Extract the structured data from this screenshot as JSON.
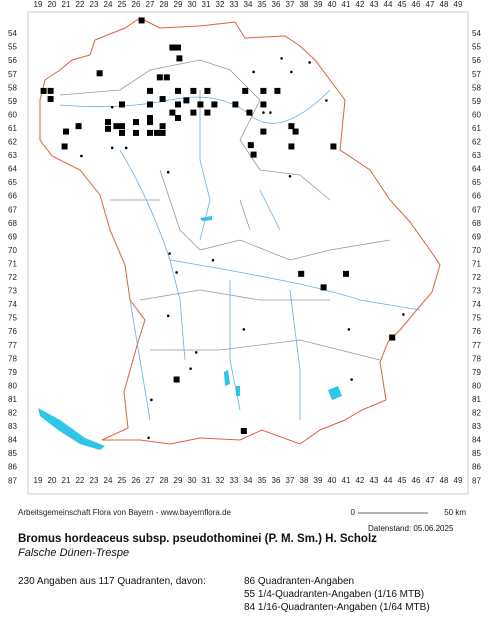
{
  "map": {
    "columns": [
      19,
      20,
      21,
      22,
      23,
      24,
      25,
      26,
      27,
      28,
      29,
      30,
      31,
      32,
      33,
      34,
      35,
      36,
      37,
      38,
      39,
      40,
      41,
      42,
      43,
      44,
      45,
      46,
      47,
      48,
      49
    ],
    "rows": [
      54,
      55,
      56,
      57,
      58,
      59,
      60,
      61,
      62,
      63,
      64,
      65,
      66,
      67,
      68,
      69,
      70,
      71,
      72,
      73,
      74,
      75,
      76,
      77,
      78,
      79,
      80,
      81,
      82,
      83,
      84,
      85,
      86,
      87
    ],
    "points": [
      {
        "col": 26.4,
        "row": 53.0,
        "kind": "square"
      },
      {
        "col": 28.6,
        "row": 55.0,
        "kind": "square"
      },
      {
        "col": 29.0,
        "row": 55.0,
        "kind": "square"
      },
      {
        "col": 29.1,
        "row": 55.8,
        "kind": "square"
      },
      {
        "col": 23.4,
        "row": 56.9,
        "kind": "square"
      },
      {
        "col": 27.7,
        "row": 57.2,
        "kind": "square"
      },
      {
        "col": 28.2,
        "row": 57.2,
        "kind": "square"
      },
      {
        "col": 19.4,
        "row": 58.2,
        "kind": "square"
      },
      {
        "col": 19.9,
        "row": 58.2,
        "kind": "square"
      },
      {
        "col": 27.0,
        "row": 58.2,
        "kind": "square"
      },
      {
        "col": 29.0,
        "row": 58.2,
        "kind": "square"
      },
      {
        "col": 30.1,
        "row": 58.2,
        "kind": "square"
      },
      {
        "col": 31.1,
        "row": 58.2,
        "kind": "square"
      },
      {
        "col": 33.8,
        "row": 58.2,
        "kind": "square"
      },
      {
        "col": 35.1,
        "row": 58.2,
        "kind": "square"
      },
      {
        "col": 36.1,
        "row": 58.2,
        "kind": "square"
      },
      {
        "col": 19.9,
        "row": 58.8,
        "kind": "square"
      },
      {
        "col": 25.0,
        "row": 59.2,
        "kind": "square"
      },
      {
        "col": 27.0,
        "row": 59.2,
        "kind": "square"
      },
      {
        "col": 27.9,
        "row": 58.8,
        "kind": "square"
      },
      {
        "col": 29.0,
        "row": 59.2,
        "kind": "square"
      },
      {
        "col": 29.6,
        "row": 58.9,
        "kind": "square"
      },
      {
        "col": 30.6,
        "row": 59.2,
        "kind": "square"
      },
      {
        "col": 31.6,
        "row": 59.2,
        "kind": "square"
      },
      {
        "col": 33.1,
        "row": 59.2,
        "kind": "square"
      },
      {
        "col": 35.1,
        "row": 59.2,
        "kind": "square"
      },
      {
        "col": 27.0,
        "row": 60.2,
        "kind": "square"
      },
      {
        "col": 28.6,
        "row": 59.8,
        "kind": "square"
      },
      {
        "col": 29.0,
        "row": 60.2,
        "kind": "square"
      },
      {
        "col": 30.1,
        "row": 59.8,
        "kind": "square"
      },
      {
        "col": 31.1,
        "row": 59.8,
        "kind": "square"
      },
      {
        "col": 34.1,
        "row": 59.8,
        "kind": "square"
      },
      {
        "col": 21.9,
        "row": 60.8,
        "kind": "square"
      },
      {
        "col": 24.0,
        "row": 60.5,
        "kind": "square"
      },
      {
        "col": 25.0,
        "row": 60.8,
        "kind": "square"
      },
      {
        "col": 26.0,
        "row": 60.5,
        "kind": "square"
      },
      {
        "col": 27.0,
        "row": 60.5,
        "kind": "square"
      },
      {
        "col": 27.9,
        "row": 60.8,
        "kind": "square"
      },
      {
        "col": 21.0,
        "row": 61.2,
        "kind": "square"
      },
      {
        "col": 24.0,
        "row": 61.0,
        "kind": "square"
      },
      {
        "col": 24.6,
        "row": 60.8,
        "kind": "square"
      },
      {
        "col": 25.0,
        "row": 61.3,
        "kind": "square"
      },
      {
        "col": 26.0,
        "row": 61.3,
        "kind": "square"
      },
      {
        "col": 27.0,
        "row": 61.3,
        "kind": "square"
      },
      {
        "col": 27.5,
        "row": 61.3,
        "kind": "square"
      },
      {
        "col": 27.9,
        "row": 61.3,
        "kind": "square"
      },
      {
        "col": 35.1,
        "row": 61.2,
        "kind": "square"
      },
      {
        "col": 37.1,
        "row": 60.8,
        "kind": "square"
      },
      {
        "col": 37.4,
        "row": 61.2,
        "kind": "square"
      },
      {
        "col": 20.9,
        "row": 62.3,
        "kind": "square"
      },
      {
        "col": 34.2,
        "row": 62.2,
        "kind": "square"
      },
      {
        "col": 37.1,
        "row": 62.3,
        "kind": "square"
      },
      {
        "col": 40.1,
        "row": 62.3,
        "kind": "square"
      },
      {
        "col": 34.4,
        "row": 62.9,
        "kind": "square"
      },
      {
        "col": 37.8,
        "row": 71.7,
        "kind": "square"
      },
      {
        "col": 41.0,
        "row": 71.7,
        "kind": "square"
      },
      {
        "col": 39.4,
        "row": 72.7,
        "kind": "square"
      },
      {
        "col": 28.9,
        "row": 79.5,
        "kind": "square"
      },
      {
        "col": 44.3,
        "row": 76.4,
        "kind": "square"
      },
      {
        "col": 33.7,
        "row": 83.3,
        "kind": "square"
      },
      {
        "col": 24.3,
        "row": 59.4,
        "kind": "dot"
      },
      {
        "col": 25.3,
        "row": 62.4,
        "kind": "dot"
      },
      {
        "col": 24.3,
        "row": 62.4,
        "kind": "dot"
      },
      {
        "col": 22.1,
        "row": 63.0,
        "kind": "dot"
      },
      {
        "col": 34.4,
        "row": 56.8,
        "kind": "dot"
      },
      {
        "col": 37.1,
        "row": 56.8,
        "kind": "dot"
      },
      {
        "col": 38.4,
        "row": 56.1,
        "kind": "dot"
      },
      {
        "col": 36.4,
        "row": 55.8,
        "kind": "dot"
      },
      {
        "col": 39.6,
        "row": 58.9,
        "kind": "dot"
      },
      {
        "col": 35.1,
        "row": 59.8,
        "kind": "dot"
      },
      {
        "col": 35.6,
        "row": 59.8,
        "kind": "dot"
      },
      {
        "col": 28.3,
        "row": 64.2,
        "kind": "dot"
      },
      {
        "col": 28.4,
        "row": 70.2,
        "kind": "dot"
      },
      {
        "col": 31.5,
        "row": 70.7,
        "kind": "dot"
      },
      {
        "col": 28.9,
        "row": 71.6,
        "kind": "dot"
      },
      {
        "col": 28.3,
        "row": 74.8,
        "kind": "dot"
      },
      {
        "col": 33.7,
        "row": 75.8,
        "kind": "dot"
      },
      {
        "col": 41.2,
        "row": 75.8,
        "kind": "dot"
      },
      {
        "col": 45.1,
        "row": 74.7,
        "kind": "dot"
      },
      {
        "col": 30.3,
        "row": 77.5,
        "kind": "dot"
      },
      {
        "col": 29.9,
        "row": 78.7,
        "kind": "dot"
      },
      {
        "col": 27.1,
        "row": 81.0,
        "kind": "dot"
      },
      {
        "col": 26.9,
        "row": 83.8,
        "kind": "dot"
      },
      {
        "col": 41.4,
        "row": 79.5,
        "kind": "dot"
      },
      {
        "col": 37.0,
        "row": 64.5,
        "kind": "dot"
      }
    ]
  },
  "footer": {
    "credit": "Arbeitsgemeinschaft Flora von Bayern - www.bayernflora.de",
    "scale_start": "0",
    "scale_end": "50 km",
    "date": "Datenstand: 05.06.2025"
  },
  "species": {
    "name": "Bromus hordeaceus subsp. pseudothominei (P. M. Sm.) H. Scholz",
    "common_name": "Falsche Dünen-Trespe"
  },
  "summary": {
    "total": "230 Angaben aus 117 Quadranten, davon:",
    "lines": [
      "86 Quadranten-Angaben",
      "55 1/4-Quadranten-Angaben (1/16 MTB)",
      "84 1/16-Quadranten-Angaben (1/64 MTB)"
    ]
  }
}
